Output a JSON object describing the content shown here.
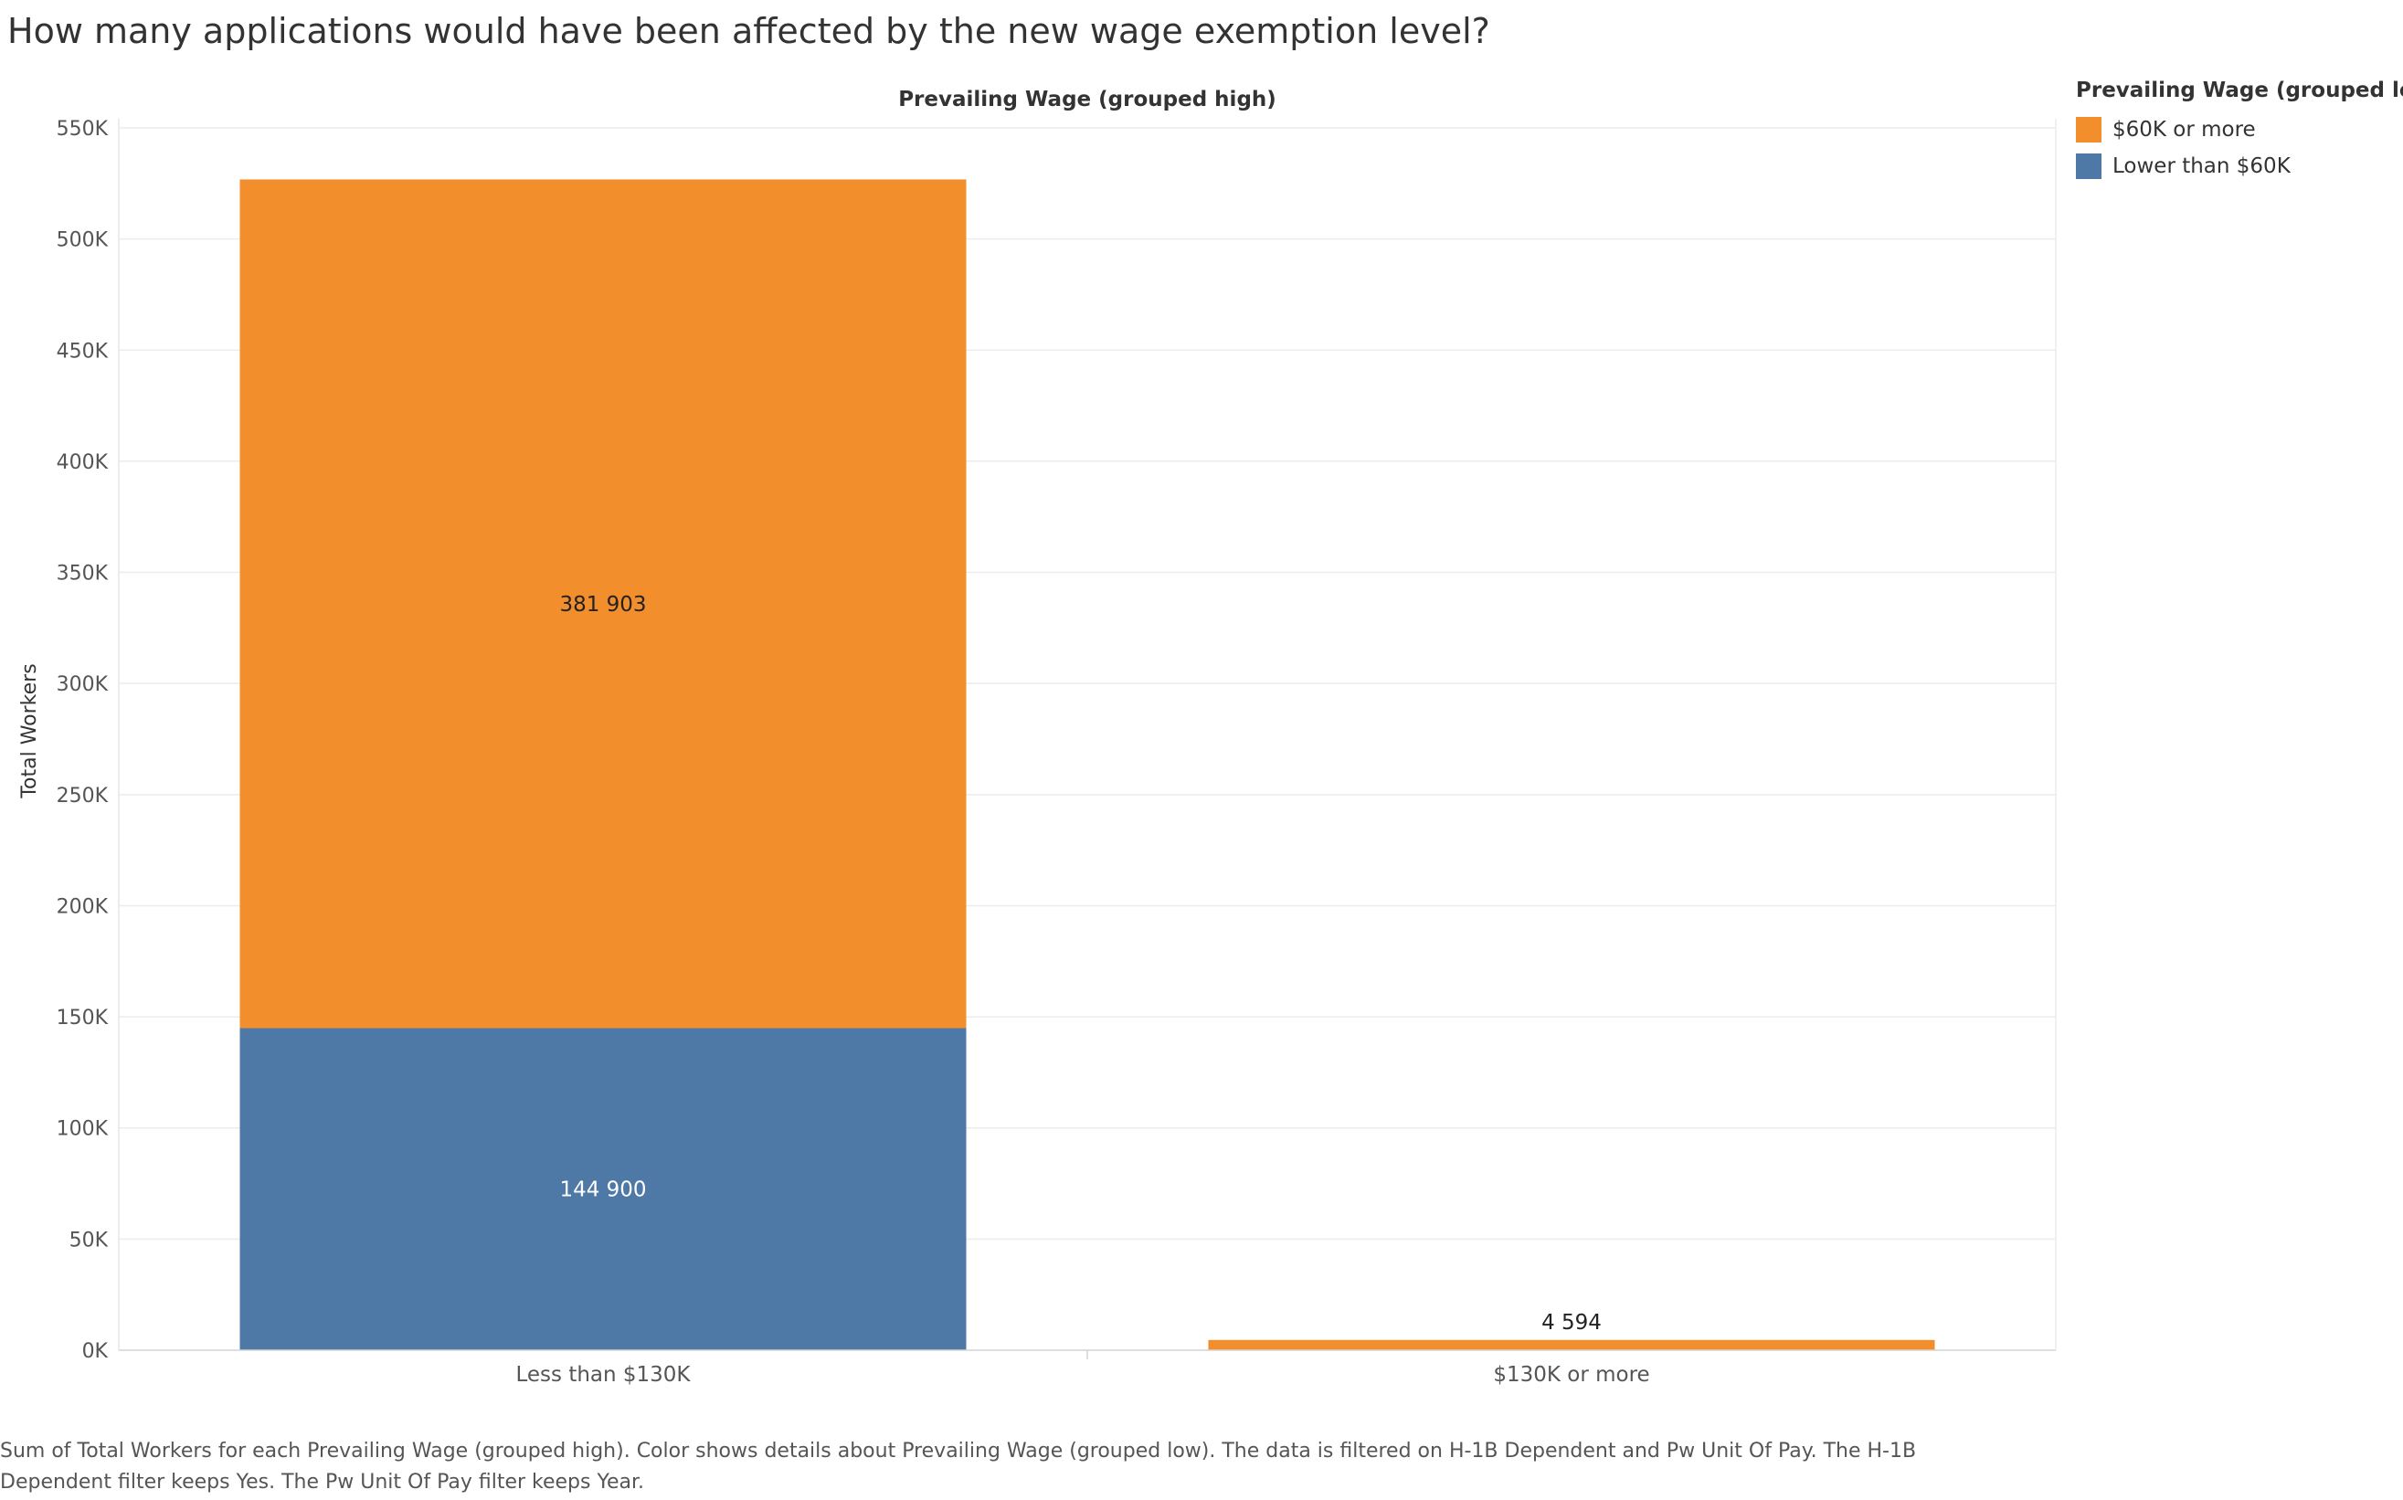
{
  "title": "How many applications would have been affected by the new wage exemption level?",
  "chart_data": {
    "type": "bar",
    "stacked": true,
    "column_header": "Prevailing Wage (grouped high)",
    "ylabel": "Total Workers",
    "ylim": [
      0,
      550000
    ],
    "yticks": [
      {
        "value": 0,
        "label": "0K"
      },
      {
        "value": 50000,
        "label": "50K"
      },
      {
        "value": 100000,
        "label": "100K"
      },
      {
        "value": 150000,
        "label": "150K"
      },
      {
        "value": 200000,
        "label": "200K"
      },
      {
        "value": 250000,
        "label": "250K"
      },
      {
        "value": 300000,
        "label": "300K"
      },
      {
        "value": 350000,
        "label": "350K"
      },
      {
        "value": 400000,
        "label": "400K"
      },
      {
        "value": 450000,
        "label": "450K"
      },
      {
        "value": 500000,
        "label": "500K"
      },
      {
        "value": 550000,
        "label": "550K"
      }
    ],
    "categories": [
      "Less than $130K",
      "$130K or more"
    ],
    "series": [
      {
        "name": "Lower than $60K",
        "color": "#4e79a7",
        "values": [
          144900,
          0
        ],
        "labels": [
          "144 900",
          ""
        ]
      },
      {
        "name": "$60K or more",
        "color": "#f28e2b",
        "values": [
          381903,
          4594
        ],
        "labels": [
          "381 903",
          "4 594"
        ]
      }
    ],
    "grid": true,
    "legend": {
      "title": "Prevailing Wage (grouped low)",
      "position": "top-right",
      "items": [
        {
          "label": "$60K or more",
          "color": "#f28e2b"
        },
        {
          "label": "Lower than $60K",
          "color": "#4e79a7"
        }
      ]
    }
  },
  "caption": "Sum of Total Workers for each Prevailing Wage (grouped high).  Color shows details about Prevailing Wage (grouped low). The data is filtered on H-1B Dependent and Pw Unit Of Pay. The H-1B Dependent filter keeps Yes. The Pw Unit Of Pay filter keeps Year."
}
